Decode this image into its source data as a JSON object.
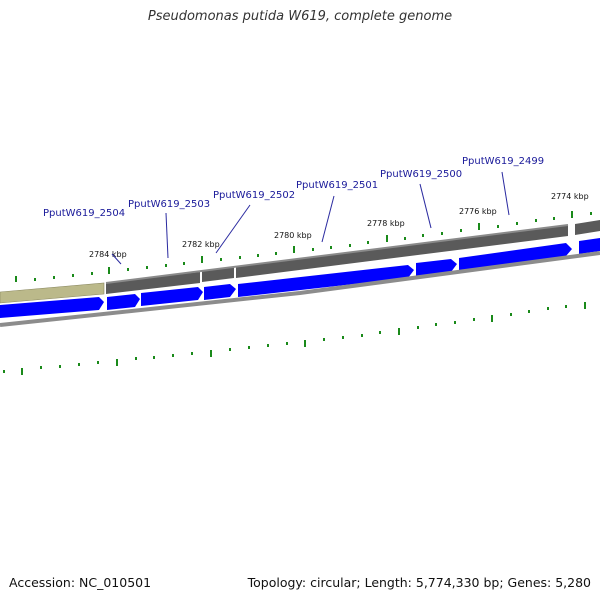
{
  "title": "Pseudomonas putida W619, complete genome",
  "footer": {
    "accession": "Accession: NC_010501",
    "topology": "Topology: circular; Length: 5,774,330 bp; Genes: 5,280"
  },
  "colors": {
    "gene_forward": "#0000ff",
    "gene_label": "#1a1a9a",
    "ticks": "#1a8a1a",
    "contig_dark": "#555555",
    "contig_highlight": "#bbb98a",
    "backbone": "#8c8c8c"
  },
  "genes": [
    {
      "id": "PputW619_2504"
    },
    {
      "id": "PputW619_2503"
    },
    {
      "id": "PputW619_2502"
    },
    {
      "id": "PputW619_2501"
    },
    {
      "id": "PputW619_2500"
    },
    {
      "id": "PputW619_2499"
    }
  ],
  "kbp_marks": [
    "2784 kbp",
    "2782 kbp",
    "2780 kbp",
    "2778 kbp",
    "2776 kbp",
    "2774 kbp"
  ]
}
